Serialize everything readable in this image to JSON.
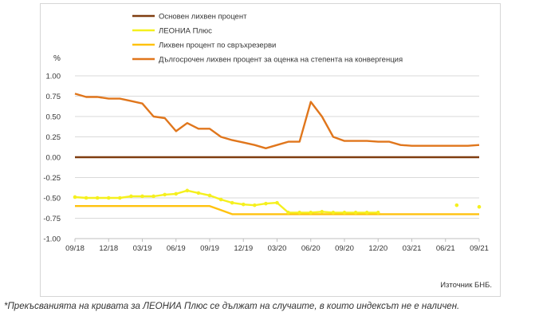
{
  "chart_data": {
    "type": "line",
    "unit_label": "%",
    "source_note": "Източник БНБ.",
    "ylim": [
      -1.0,
      1.0
    ],
    "y_ticks": [
      "1.00",
      "0.75",
      "0.50",
      "0.25",
      "0.00",
      "-0.25",
      "-0.50",
      "-0.75",
      "-1.00"
    ],
    "y_tick_values": [
      1.0,
      0.75,
      0.5,
      0.25,
      0.0,
      -0.25,
      -0.5,
      -0.75,
      -1.0
    ],
    "x_ticks": [
      "09/18",
      "12/18",
      "03/19",
      "06/19",
      "09/19",
      "12/19",
      "03/20",
      "06/20",
      "09/20",
      "12/20",
      "03/21",
      "06/21",
      "09/21"
    ],
    "x_tick_positions": [
      0,
      3,
      6,
      9,
      12,
      15,
      18,
      21,
      24,
      27,
      30,
      33,
      36
    ],
    "x_range": [
      0,
      36
    ],
    "legend_position": "top",
    "series": [
      {
        "name": "Основен лихвен процент",
        "color": "#7f3d10",
        "style": "line",
        "values": [
          0.0,
          0.0,
          0.0,
          0.0,
          0.0,
          0.0,
          0.0,
          0.0,
          0.0,
          0.0,
          0.0,
          0.0,
          0.0,
          0.0,
          0.0,
          0.0,
          0.0,
          0.0,
          0.0,
          0.0,
          0.0,
          0.0,
          0.0,
          0.0,
          0.0,
          0.0,
          0.0,
          0.0,
          0.0,
          0.0,
          0.0,
          0.0,
          0.0,
          0.0,
          0.0,
          0.0,
          0.0
        ]
      },
      {
        "name": "ЛЕОНИА Плюс",
        "color": "#f5f01e",
        "style": "line-markers",
        "values": [
          -0.49,
          -0.5,
          -0.5,
          -0.5,
          -0.5,
          -0.48,
          -0.48,
          -0.48,
          -0.46,
          -0.45,
          -0.41,
          -0.44,
          -0.47,
          -0.52,
          -0.56,
          -0.58,
          -0.59,
          -0.57,
          -0.56,
          -0.68,
          -0.68,
          -0.68,
          -0.67,
          -0.68,
          -0.68,
          -0.68,
          -0.68,
          -0.68,
          null,
          null,
          null,
          null,
          null,
          null,
          -0.59,
          null,
          -0.61
        ]
      },
      {
        "name": "Лихвен процент по свръхрезерви",
        "color": "#ffc20e",
        "style": "line",
        "values": [
          -0.6,
          -0.6,
          -0.6,
          -0.6,
          -0.6,
          -0.6,
          -0.6,
          -0.6,
          -0.6,
          -0.6,
          -0.6,
          -0.6,
          -0.6,
          -0.65,
          -0.7,
          -0.7,
          -0.7,
          -0.7,
          -0.7,
          -0.7,
          -0.7,
          -0.7,
          -0.7,
          -0.7,
          -0.7,
          -0.7,
          -0.7,
          -0.7,
          -0.7,
          -0.7,
          -0.7,
          -0.7,
          -0.7,
          -0.7,
          -0.7,
          -0.7,
          -0.7
        ]
      },
      {
        "name": "Дългосрочен лихвен процент за оценка на степента на конвергенция",
        "color": "#e0761c",
        "style": "line",
        "values": [
          0.78,
          0.74,
          0.74,
          0.72,
          0.72,
          0.69,
          0.66,
          0.5,
          0.48,
          0.32,
          0.42,
          0.35,
          0.35,
          0.25,
          0.21,
          0.18,
          0.15,
          0.11,
          0.15,
          0.19,
          0.19,
          0.68,
          0.5,
          0.25,
          0.2,
          0.2,
          0.2,
          0.19,
          0.19,
          0.15,
          0.14,
          0.14,
          0.14,
          0.14,
          0.14,
          0.14,
          0.15
        ]
      }
    ]
  },
  "footnote": "*Прекъсванията на кривата за ЛЕОНИА Плюс се дължат на случаите, в които индексът не е наличен."
}
